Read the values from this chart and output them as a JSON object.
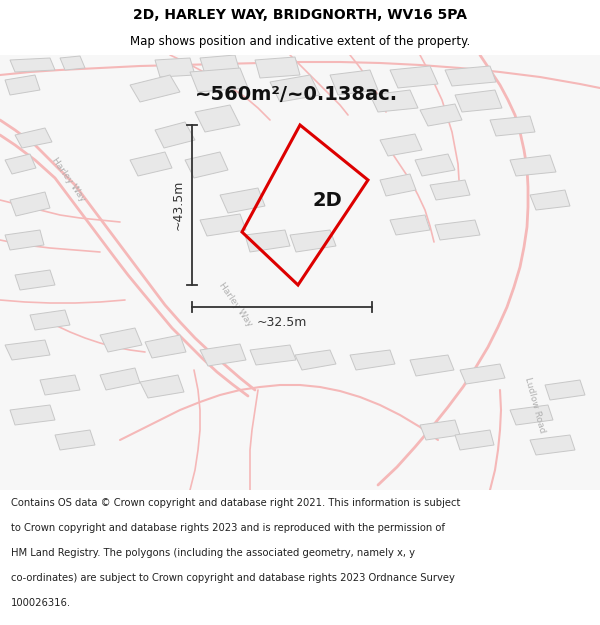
{
  "title": "2D, HARLEY WAY, BRIDGNORTH, WV16 5PA",
  "subtitle": "Map shows position and indicative extent of the property.",
  "area_text": "~560m²/~0.138ac.",
  "property_label": "2D",
  "dim_height": "~43.5m",
  "dim_width": "~32.5m",
  "copyright_lines": [
    "Contains OS data © Crown copyright and database right 2021. This information is subject",
    "to Crown copyright and database rights 2023 and is reproduced with the permission of",
    "HM Land Registry. The polygons (including the associated geometry, namely x, y",
    "co-ordinates) are subject to Crown copyright and database rights 2023 Ordnance Survey",
    "100026316."
  ],
  "bg_color": "#ffffff",
  "map_bg": "#f7f7f7",
  "building_color": "#e8e8e8",
  "building_edge": "#c8c8c8",
  "road_color": "#f5b8b8",
  "road_lw": 1.5,
  "property_edge": "#dd0000",
  "dim_color": "#333333",
  "title_color": "#000000",
  "road_label_color": "#bbbbbb",
  "figsize": [
    6.0,
    6.25
  ],
  "dpi": 100,
  "title_fontsize": 10,
  "subtitle_fontsize": 8.5,
  "area_fontsize": 14,
  "label_fontsize": 14,
  "dim_fontsize": 9,
  "copyright_fontsize": 7.2
}
